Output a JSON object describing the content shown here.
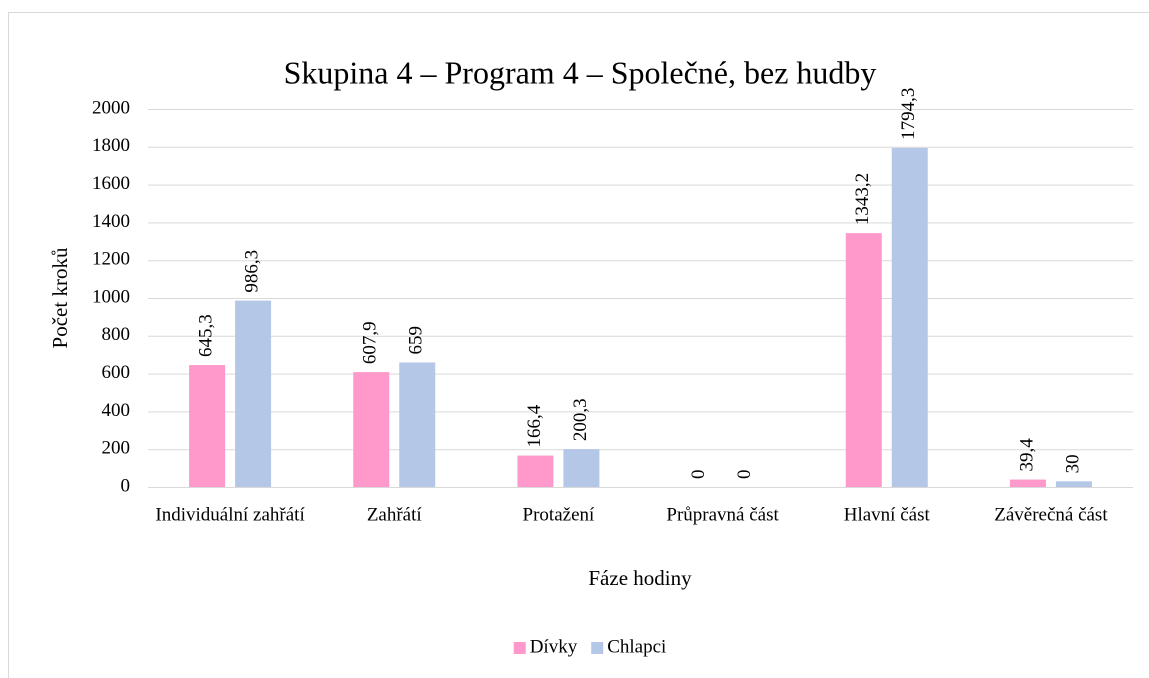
{
  "chart_data": {
    "type": "bar",
    "title": "Skupina 4 – Program 4 – Společné, bez hudby",
    "x_label": "Fáze hodiny",
    "y_label": "Počet kroků",
    "categories": [
      "Individuální zahřátí",
      "Zahřátí",
      "Protažení",
      "Průpravná část",
      "Hlavní část",
      "Závěrečná část"
    ],
    "series": [
      {
        "name": "Dívky",
        "color": "#ff99cc",
        "values": [
          645.3,
          607.9,
          166.4,
          0,
          1343.2,
          39.4
        ],
        "value_labels": [
          "645,3",
          "607,9",
          "166,4",
          "0",
          "1343,2",
          "39,4"
        ]
      },
      {
        "name": "Chlapci",
        "color": "#b4c7e7",
        "values": [
          986.3,
          659,
          200.3,
          0,
          1794.3,
          30
        ],
        "value_labels": [
          "986,3",
          "659",
          "200,3",
          "0",
          "1794,3",
          "30"
        ]
      }
    ],
    "ylim": [
      0,
      2000
    ],
    "yticks": [
      0,
      200,
      400,
      600,
      800,
      1000,
      1200,
      1400,
      1600,
      1800,
      2000
    ],
    "grid": true,
    "legend": "bottom"
  }
}
